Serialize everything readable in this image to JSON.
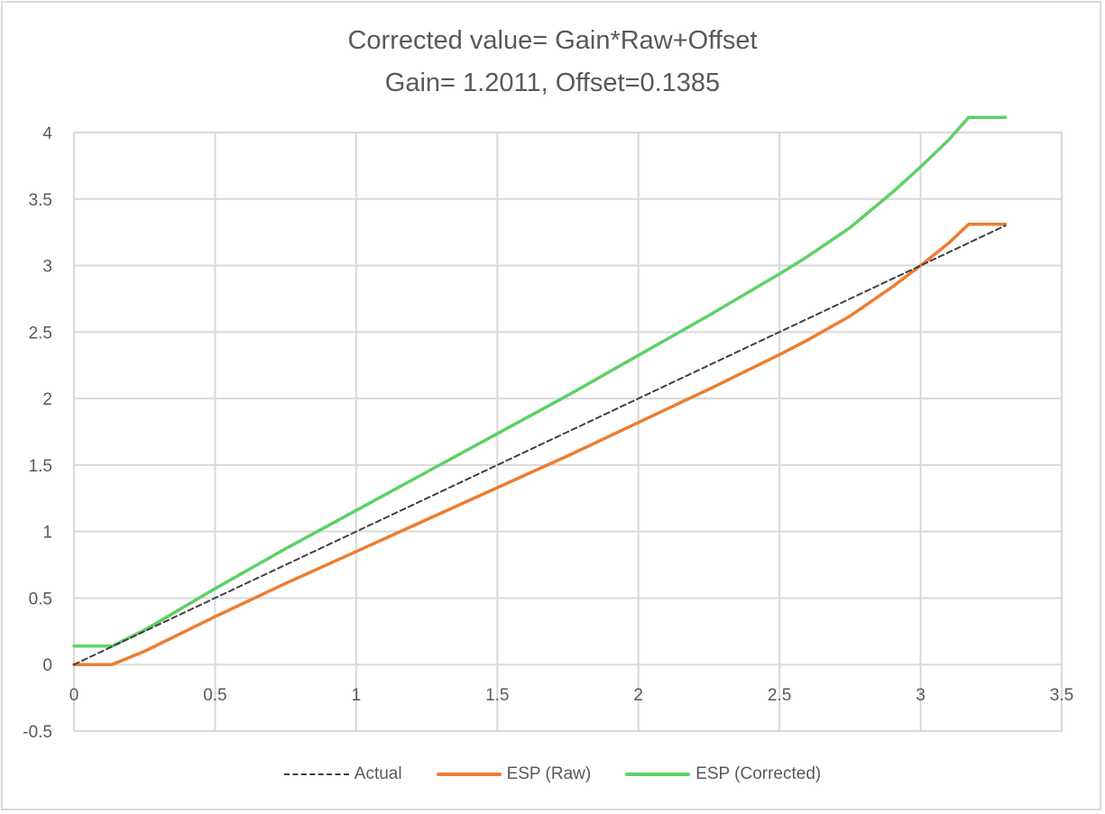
{
  "chart_data": {
    "type": "line",
    "title": "Corrected value= Gain*Raw+Offset",
    "subtitle": "Gain= 1.2011, Offset=0.1385",
    "xlabel": "",
    "ylabel": "",
    "xlim": [
      0,
      3.5
    ],
    "ylim": [
      -0.5,
      4
    ],
    "x_ticks": [
      "0",
      "0.5",
      "1",
      "1.5",
      "2",
      "2.5",
      "3",
      "3.5"
    ],
    "y_ticks": [
      "4",
      "3.5",
      "3",
      "2.5",
      "2",
      "1.5",
      "1",
      "0.5",
      "0",
      "-0.5"
    ],
    "grid": true,
    "legend_position": "bottom",
    "gain": 1.2011,
    "offset": 0.1385,
    "x": [
      0,
      0.135,
      0.25,
      0.5,
      0.75,
      1.0,
      1.25,
      1.5,
      1.75,
      2.0,
      2.25,
      2.5,
      2.6,
      2.75,
      2.9,
      3.0,
      3.1,
      3.17,
      3.3
    ],
    "series": [
      {
        "name": "Actual",
        "color": "#404040",
        "style": "dashed",
        "values": [
          0,
          0.135,
          0.25,
          0.5,
          0.75,
          1.0,
          1.25,
          1.5,
          1.75,
          2.0,
          2.25,
          2.5,
          2.6,
          2.75,
          2.9,
          3.0,
          3.1,
          3.17,
          3.3
        ]
      },
      {
        "name": "ESP (Raw)",
        "color": "#ed7d31",
        "style": "solid",
        "values": [
          0,
          0,
          0.1,
          0.36,
          0.61,
          0.85,
          1.09,
          1.33,
          1.57,
          1.82,
          2.07,
          2.33,
          2.44,
          2.62,
          2.84,
          3.0,
          3.17,
          3.31,
          3.31
        ]
      },
      {
        "name": "ESP (Corrected)",
        "color": "#5cd167",
        "style": "solid",
        "values": [
          0.1385,
          0.1385,
          0.259,
          0.571,
          0.871,
          1.159,
          1.448,
          1.736,
          2.024,
          2.325,
          2.625,
          2.937,
          3.069,
          3.285,
          3.55,
          3.742,
          3.946,
          4.114,
          4.114
        ]
      }
    ]
  },
  "legend": {
    "items": [
      {
        "label": "Actual"
      },
      {
        "label": "ESP (Raw)"
      },
      {
        "label": "ESP (Corrected)"
      }
    ]
  }
}
